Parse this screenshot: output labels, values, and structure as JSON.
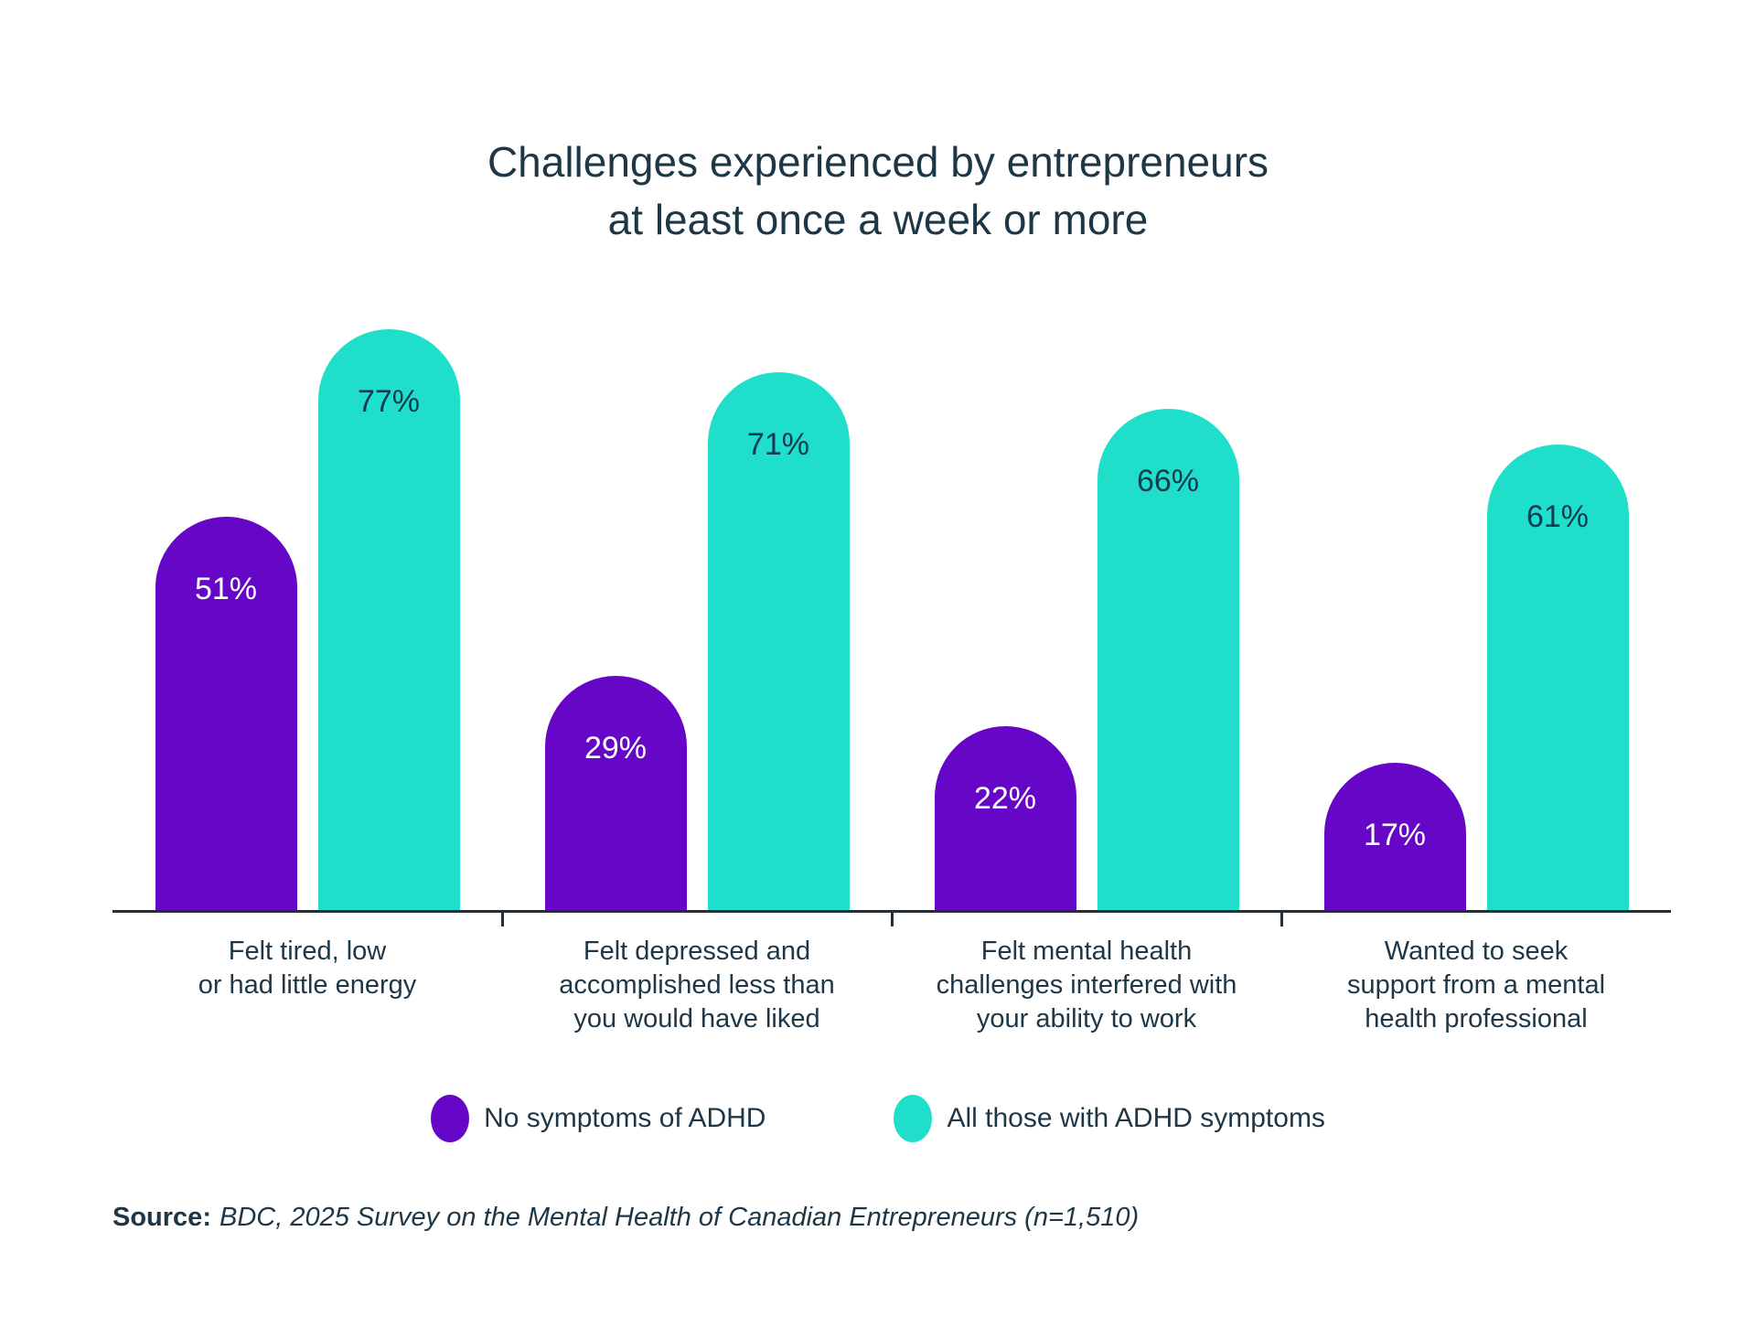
{
  "title": {
    "line1": "Challenges experienced by entrepreneurs",
    "line2": "at least once a week or more"
  },
  "chart_data": {
    "type": "bar",
    "title": "Challenges experienced by entrepreneurs at least once a week or more",
    "categories": [
      "Felt tired, low or had little energy",
      "Felt depressed and accomplished less than you would have liked",
      "Felt mental health challenges interfered with your ability to work",
      "Wanted to seek support from a mental health professional"
    ],
    "categories_wrapped": [
      [
        "Felt tired, low",
        "or had little energy"
      ],
      [
        "Felt depressed and",
        "accomplished less than",
        "you would have liked"
      ],
      [
        "Felt mental health",
        "challenges interfered with",
        "your ability to work"
      ],
      [
        "Wanted to seek",
        "support from a mental",
        "health professional"
      ]
    ],
    "series": [
      {
        "name": "No symptoms of ADHD",
        "values": [
          51,
          29,
          22,
          17
        ],
        "color": "#6606C7",
        "label_color": "#FFFFFF"
      },
      {
        "name": "All those with ADHD symptoms",
        "values": [
          77,
          71,
          66,
          61
        ],
        "color": "#1FDFCB",
        "label_color": "#123A52"
      }
    ],
    "value_suffix": "%",
    "xlabel": "",
    "ylabel": "",
    "ylim": [
      0,
      100
    ],
    "grid": false,
    "legend_position": "bottom"
  },
  "source": {
    "prefix": "Source:",
    "text": "BDC, 2025 Survey on the Mental Health of Canadian Entrepreneurs (n=1,510)"
  },
  "colors": {
    "text": "#1E3747",
    "axis": "#222E3A",
    "background": "#FFFFFF"
  }
}
